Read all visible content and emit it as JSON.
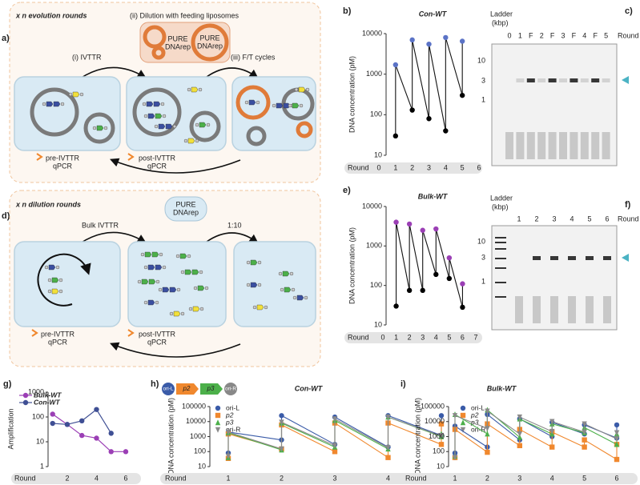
{
  "panel_labels": [
    "a)",
    "b)",
    "c)",
    "d)",
    "e)",
    "f)",
    "g)",
    "h)",
    "i)"
  ],
  "diagram_a": {
    "title": "x n evolution rounds",
    "dilution": "(ii) Dilution with feeding liposomes",
    "liposome_1": [
      "PURE",
      "DNArep"
    ],
    "liposome_2": [
      "PURE",
      "DNArep"
    ],
    "step_1": "(i) IVTTR",
    "step_3": "(iii) F/T cycles",
    "pre": [
      "pre-IVTTR",
      "qPCR"
    ],
    "post": [
      "post-IVTTR",
      "qPCR"
    ]
  },
  "diagram_d": {
    "title": "x n dilution rounds",
    "feed": [
      "PURE",
      "DNArep"
    ],
    "step_1": "Bulk IVTTR",
    "step_2": "1:10",
    "pre": [
      "pre-IVTTR",
      "qPCR"
    ],
    "post": [
      "post-IVTTR",
      "qPCR"
    ]
  },
  "gel_c": {
    "ladder": [
      "Ladder",
      "(kbp)"
    ],
    "lanes": [
      "0",
      "1",
      "F",
      "2",
      "F",
      "3",
      "F",
      "4",
      "F",
      "5"
    ],
    "lane_axis": "Round",
    "ladder_sizes": [
      "10",
      "3",
      "1"
    ]
  },
  "gel_f": {
    "ladder": [
      "Ladder",
      "(kbp)"
    ],
    "lanes": [
      "1",
      "2",
      "3",
      "4",
      "5",
      "6"
    ],
    "lane_axis": "Round",
    "ladder_sizes": [
      "10",
      "3",
      "1"
    ]
  },
  "chart_data": [
    {
      "type": "zigzag",
      "title": "Con-WT",
      "ylabel": "DNA concentration (pM)",
      "xlabel": "Round",
      "x": [
        1,
        2,
        3,
        4,
        5
      ],
      "xlim": [
        0,
        6
      ],
      "xticks": [
        0,
        1,
        2,
        3,
        4,
        5,
        6
      ],
      "ylim": [
        10,
        10000
      ],
      "yticks": [
        10,
        100,
        1000,
        10000
      ],
      "log_y": true,
      "series": [
        {
          "color": "#5b73c6",
          "pre_color": "#000000",
          "pre_values": [
            30,
            130,
            80,
            40,
            300
          ],
          "values": [
            1700,
            7000,
            5500,
            8000,
            6500
          ]
        }
      ]
    },
    {
      "type": "zigzag",
      "title": "Bulk-WT",
      "ylabel": "DNA concentration (pM)",
      "xlabel": "Round",
      "x": [
        1,
        2,
        3,
        4,
        5,
        6
      ],
      "xlim": [
        0,
        7
      ],
      "xticks": [
        0,
        1,
        2,
        3,
        4,
        5,
        6,
        7
      ],
      "ylim": [
        10,
        10000
      ],
      "yticks": [
        10,
        100,
        1000,
        10000
      ],
      "log_y": true,
      "series": [
        {
          "color": "#9b3fb5",
          "pre_color": "#000000",
          "pre_values": [
            30,
            75,
            75,
            190,
            150,
            28
          ],
          "values": [
            4000,
            3600,
            2500,
            2700,
            500,
            110
          ]
        }
      ]
    },
    {
      "type": "line",
      "ylabel": "Amplification",
      "xlabel": "Round",
      "x": [
        1,
        2,
        3,
        4,
        5,
        6
      ],
      "xlim": [
        1,
        6
      ],
      "xticks": [
        2,
        4,
        6
      ],
      "ylim": [
        1,
        1000
      ],
      "yticks": [
        1,
        10,
        100,
        1000
      ],
      "log_y": true,
      "legend": "upper left",
      "series": [
        {
          "name": "Bulk-WT",
          "color": "#9b3fb5",
          "values": [
            130,
            50,
            18,
            14,
            4,
            4
          ]
        },
        {
          "name": "Con-WT",
          "color": "#3f4f94",
          "values": [
            55,
            50,
            70,
            200,
            22,
            null
          ]
        }
      ]
    },
    {
      "type": "zigzag",
      "title": "Con-WT",
      "construct": [
        "ori-L",
        "p2",
        "p3",
        "ori-R"
      ],
      "ylabel": "DNA concentration (pM)",
      "xlabel": "Round",
      "x": [
        1,
        2,
        3,
        4,
        5
      ],
      "xlim": [
        1,
        5
      ],
      "xticks": [
        1,
        2,
        3,
        4,
        5
      ],
      "ylim": [
        10,
        100000
      ],
      "yticks": [
        10,
        100,
        1000,
        10000,
        100000
      ],
      "log_y": true,
      "legend": "upper left",
      "series": [
        {
          "name": "ori-L",
          "color": "#3a5ba8",
          "marker": "circle",
          "pre_values": [
            80,
            600,
            300,
            200,
            1200
          ],
          "values": [
            2000,
            25000,
            20000,
            25000,
            25000
          ]
        },
        {
          "name": "p2",
          "color": "#f0882e",
          "marker": "square",
          "pre_values": [
            35,
            150,
            100,
            40,
            300
          ],
          "values": [
            1500,
            6000,
            8000,
            8000,
            7000
          ]
        },
        {
          "name": "p3",
          "color": "#4cb04a",
          "marker": "triangle",
          "pre_values": [
            40,
            130,
            200,
            150,
            1000
          ],
          "values": [
            1800,
            8000,
            12000,
            20000,
            1500
          ]
        },
        {
          "name": "ori-R",
          "color": "#8a8a8a",
          "marker": "triangle-down",
          "pre_values": [
            50,
            150,
            250,
            180,
            1100
          ],
          "values": [
            2000,
            9000,
            15000,
            20000,
            1200
          ]
        }
      ]
    },
    {
      "type": "zigzag",
      "title": "Bulk-WT",
      "ylabel": "DNA concentration (pM)",
      "xlabel": "Round",
      "x": [
        1,
        2,
        3,
        4,
        5,
        6
      ],
      "xlim": [
        1,
        6
      ],
      "xticks": [
        1,
        2,
        3,
        4,
        5,
        6
      ],
      "ylim": [
        10,
        100000
      ],
      "yticks": [
        10,
        100,
        1000,
        10000,
        100000
      ],
      "log_y": true,
      "legend": "upper left",
      "series": [
        {
          "name": "ori-L",
          "color": "#3a5ba8",
          "marker": "circle",
          "pre_values": [
            80,
            200,
            600,
            1000,
            1500,
            800
          ],
          "values": [
            5000,
            30000,
            15000,
            9000,
            6000,
            6000
          ]
        },
        {
          "name": "p2",
          "color": "#f0882e",
          "marker": "square",
          "pre_values": [
            40,
            90,
            250,
            200,
            200,
            30
          ],
          "values": [
            3000,
            7000,
            3000,
            2000,
            600,
            300
          ]
        },
        {
          "name": "p3",
          "color": "#4cb04a",
          "marker": "triangle",
          "pre_values": [
            50,
            1500,
            900,
            1500,
            1800,
            300
          ],
          "values": [
            30000,
            60000,
            15000,
            7000,
            4000,
            1500
          ]
        },
        {
          "name": "ori-R",
          "color": "#8a8a8a",
          "marker": "triangle-down",
          "pre_values": [
            40,
            3500,
            1500,
            2200,
            2000,
            700
          ],
          "values": [
            25000,
            50000,
            20000,
            10000,
            7000,
            1800
          ]
        }
      ]
    }
  ]
}
